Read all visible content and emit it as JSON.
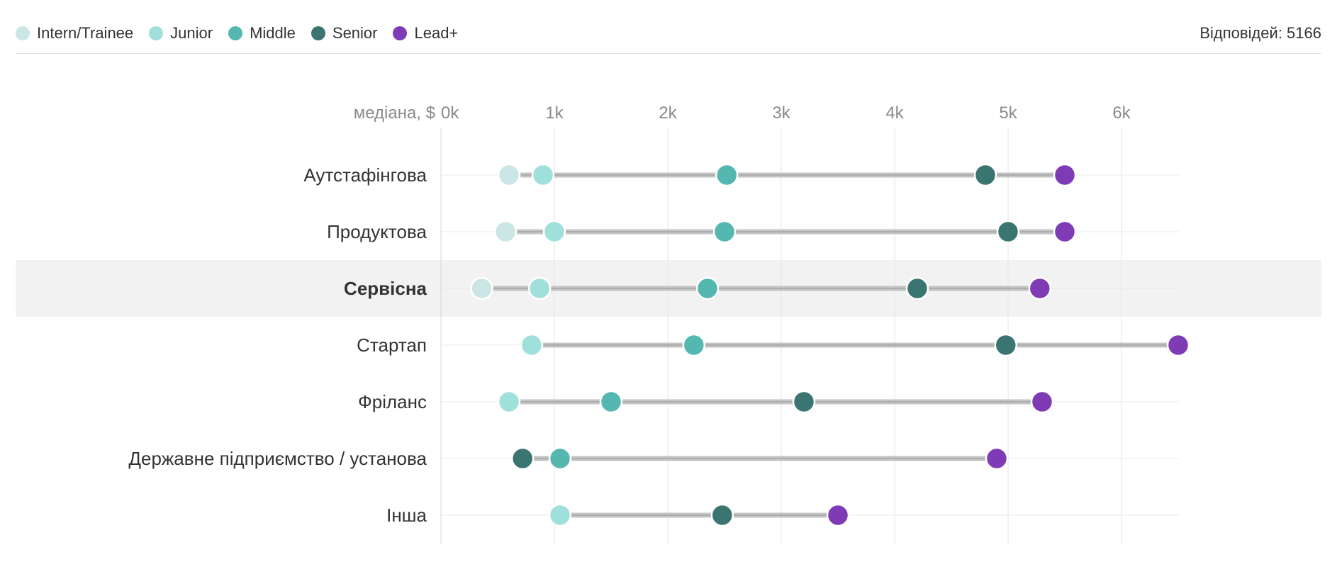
{
  "legend": [
    {
      "label": "Intern/Trainee",
      "color": "#cce6e5"
    },
    {
      "label": "Junior",
      "color": "#9fe0da"
    },
    {
      "label": "Middle",
      "color": "#54b7b0"
    },
    {
      "label": "Senior",
      "color": "#3b7571"
    },
    {
      "label": "Lead+",
      "color": "#7f3bb5"
    }
  ],
  "responses_label": "Відповідей: 5166",
  "chart_data": {
    "type": "dot-range",
    "axis_title": "медіана, $",
    "x_ticks": [
      "0k",
      "1k",
      "2k",
      "3k",
      "4k",
      "5k",
      "6k"
    ],
    "xlim": [
      0,
      6500
    ],
    "grid": true,
    "legend_position": "top-left",
    "highlighted_category": "Сервісна",
    "categories": [
      "Аутстафінгова",
      "Продуктова",
      "Сервісна",
      "Стартап",
      "Фріланс",
      "Державне підприємство / установа",
      "Інша"
    ],
    "series": [
      {
        "name": "Intern/Trainee",
        "color": "#cce6e5",
        "values": [
          600,
          570,
          360,
          null,
          null,
          null,
          null
        ]
      },
      {
        "name": "Junior",
        "color": "#9fe0da",
        "values": [
          900,
          1000,
          870,
          800,
          600,
          null,
          1050
        ]
      },
      {
        "name": "Middle",
        "color": "#54b7b0",
        "values": [
          2520,
          2500,
          2350,
          2230,
          1500,
          1050,
          null
        ]
      },
      {
        "name": "Senior",
        "color": "#3b7571",
        "values": [
          4800,
          5000,
          4200,
          4980,
          3200,
          720,
          2480
        ]
      },
      {
        "name": "Lead+",
        "color": "#7f3bb5",
        "values": [
          5500,
          5500,
          5280,
          6500,
          5300,
          4900,
          3500
        ]
      }
    ]
  }
}
